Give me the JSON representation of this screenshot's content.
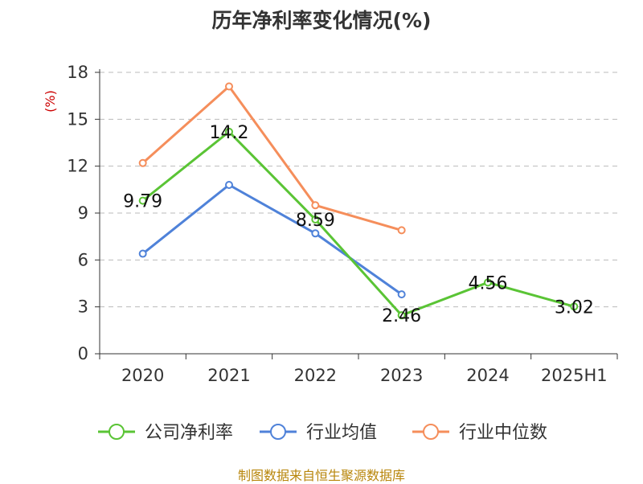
{
  "chart_data": {
    "type": "line",
    "title": "历年净利率变化情况(%)",
    "ylabel": "(%)",
    "categories": [
      "2020",
      "2021",
      "2022",
      "2023",
      "2024",
      "2025H1"
    ],
    "ylim": [
      0,
      18
    ],
    "yticks": [
      0,
      3,
      6,
      9,
      12,
      15,
      18
    ],
    "grid": true,
    "legend_position": "bottom",
    "series": [
      {
        "name": "公司净利率",
        "color": "#5ac435",
        "values": [
          9.79,
          14.2,
          8.59,
          2.46,
          4.56,
          3.02
        ],
        "labels": [
          "9.79",
          "14.2",
          "8.59",
          "2.46",
          "4.56",
          "3.02"
        ]
      },
      {
        "name": "行业均值",
        "color": "#4f82d9",
        "values": [
          6.4,
          10.8,
          7.7,
          3.8,
          null,
          null
        ]
      },
      {
        "name": "行业中位数",
        "color": "#f58e5b",
        "values": [
          12.2,
          17.1,
          9.5,
          7.9,
          null,
          null
        ]
      }
    ]
  },
  "source": "制图数据来自恒生聚源数据库"
}
